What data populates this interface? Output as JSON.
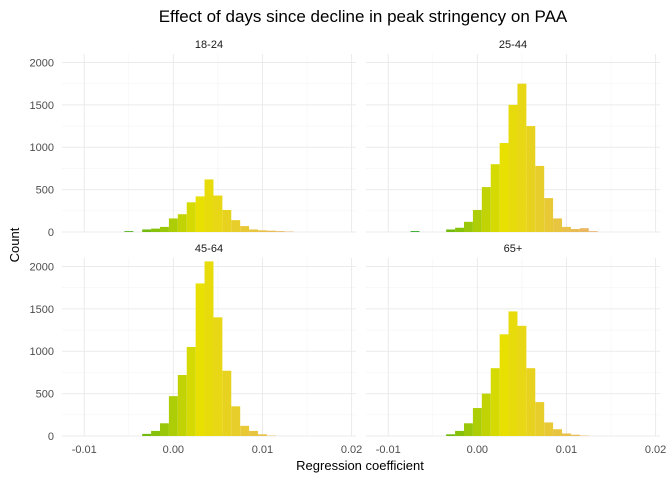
{
  "chart_data": {
    "type": "bar",
    "subtype": "faceted-histogram",
    "title": "Effect of days since decline in peak stringency on PAA",
    "xlabel": "Regression coefficient",
    "ylabel": "Count",
    "xlim": [
      -0.0125,
      0.0205
    ],
    "ylim": [
      0,
      2100
    ],
    "x_ticks": [
      -0.01,
      0.0,
      0.01,
      0.02
    ],
    "x_tick_labels": [
      "-0.01",
      "0.00",
      "0.01",
      "0.02"
    ],
    "y_ticks": [
      0,
      500,
      1000,
      1500,
      2000
    ],
    "y_tick_labels": [
      "0",
      "500",
      "1000",
      "1500",
      "2000"
    ],
    "grid": true,
    "fill_gradient": [
      "#1a9e1a",
      "#e8e000",
      "#e8b070"
    ],
    "bin_start": -0.0075,
    "bin_width": 0.001,
    "facets": [
      {
        "name": "18-24",
        "counts": [
          0,
          0,
          10,
          0,
          30,
          40,
          60,
          160,
          210,
          350,
          420,
          620,
          430,
          260,
          140,
          70,
          30,
          20,
          15,
          10,
          5
        ]
      },
      {
        "name": "25-44",
        "counts": [
          10,
          0,
          0,
          0,
          30,
          50,
          120,
          260,
          530,
          800,
          1050,
          1500,
          1750,
          1250,
          780,
          400,
          160,
          60,
          35,
          45,
          10
        ]
      },
      {
        "name": "45-64",
        "counts": [
          0,
          0,
          0,
          0,
          25,
          60,
          150,
          470,
          720,
          1050,
          1800,
          2060,
          1400,
          770,
          350,
          120,
          60,
          20,
          5,
          0,
          0
        ]
      },
      {
        "name": "65+",
        "counts": [
          0,
          0,
          0,
          0,
          20,
          60,
          150,
          330,
          500,
          800,
          1200,
          1470,
          1300,
          800,
          400,
          160,
          80,
          30,
          15,
          5,
          0
        ]
      }
    ]
  }
}
